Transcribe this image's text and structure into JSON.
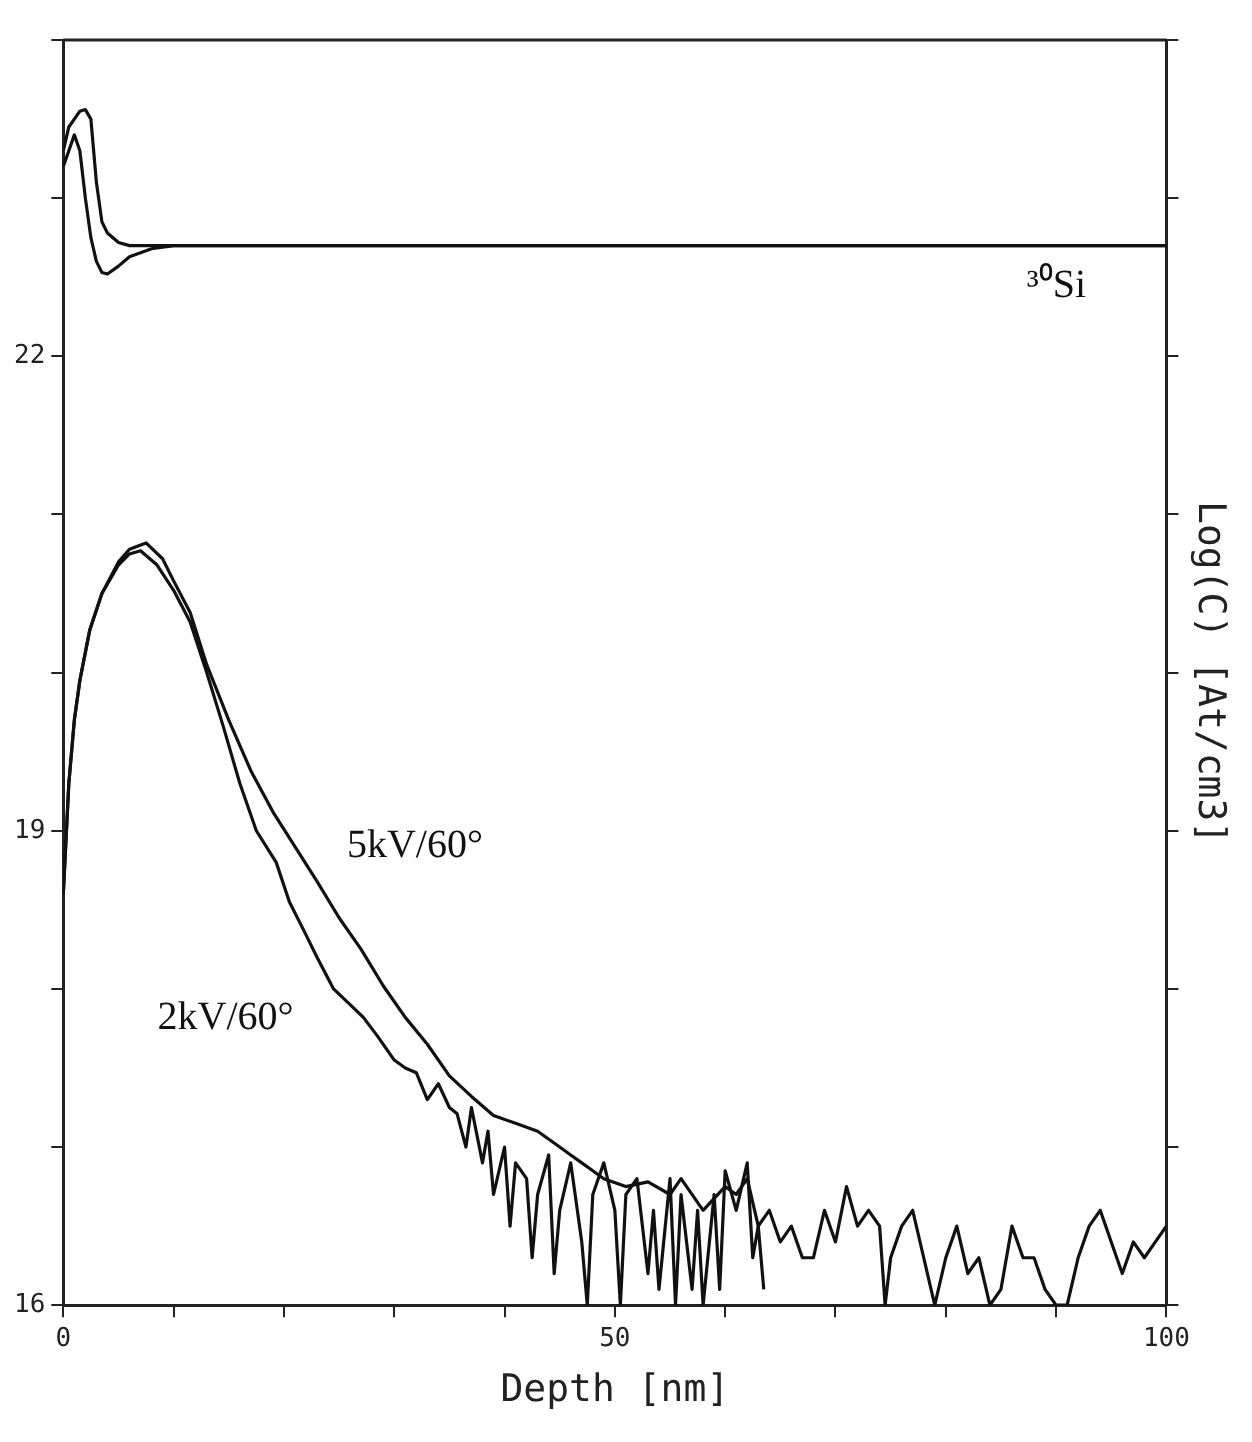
{
  "chart_data": {
    "type": "line",
    "xlabel": "Depth [nm]",
    "ylabel": "Log(C) [At/cm3]",
    "xlim": [
      0,
      100
    ],
    "xticks": [
      0,
      {
        "value": 10,
        "label": null
      },
      {
        "value": 20,
        "label": null
      },
      {
        "value": 30,
        "label": null
      },
      {
        "value": 40,
        "label": null
      },
      50,
      {
        "value": 60,
        "label": null
      },
      {
        "value": 70,
        "label": null
      },
      {
        "value": 80,
        "label": null
      },
      {
        "value": 90,
        "label": null
      },
      100
    ],
    "ylim": [
      16,
      24
    ],
    "yticks": [
      16,
      {
        "value": 17,
        "label": null
      },
      {
        "value": 18,
        "label": null
      },
      19,
      {
        "value": 20,
        "label": null
      },
      {
        "value": 21,
        "label": null
      },
      22,
      {
        "value": 23,
        "label": null
      },
      {
        "value": 24,
        "label": null
      }
    ],
    "marker": "none",
    "line_style": "solid",
    "annotations": [
      "³⁰Si"
    ],
    "series": [
      {
        "name": "5kV/60°",
        "color": "#111111",
        "x": [
          0,
          0.5,
          1,
          1.5,
          2.4,
          3.5,
          5,
          6,
          7.5,
          9,
          10,
          11.5,
          13,
          15,
          17,
          19,
          21,
          23,
          25,
          27,
          29,
          31,
          33,
          35,
          37,
          39,
          41,
          43,
          45,
          46,
          47,
          48,
          49,
          51,
          53,
          55,
          56,
          58,
          60,
          61,
          62,
          63,
          64,
          65,
          66,
          67,
          68,
          69,
          70,
          71,
          72,
          73,
          74,
          74.5,
          75,
          76,
          77,
          78,
          79,
          80,
          81,
          82,
          83,
          84,
          85,
          86,
          87,
          88,
          89,
          90,
          91,
          92,
          93,
          94,
          95,
          96,
          97,
          98,
          99,
          100
        ],
        "values": [
          18.6,
          19.3,
          19.7,
          19.95,
          20.27,
          20.5,
          20.7,
          20.78,
          20.82,
          20.72,
          20.58,
          20.38,
          20.05,
          19.7,
          19.38,
          19.12,
          18.9,
          18.68,
          18.45,
          18.25,
          18.02,
          17.82,
          17.65,
          17.45,
          17.32,
          17.2,
          17.15,
          17.1,
          17.0,
          16.95,
          16.9,
          16.85,
          16.8,
          16.75,
          16.78,
          16.7,
          16.8,
          16.6,
          16.75,
          16.7,
          16.8,
          16.5,
          16.6,
          16.4,
          16.5,
          16.3,
          16.3,
          16.6,
          16.4,
          16.75,
          16.5,
          16.6,
          16.5,
          16.0,
          16.3,
          16.5,
          16.6,
          16.3,
          16.0,
          16.3,
          16.5,
          16.2,
          16.3,
          16.0,
          16.1,
          16.5,
          16.3,
          16.3,
          16.1,
          16.0,
          16.0,
          16.3,
          16.5,
          16.6,
          16.4,
          16.2,
          16.4,
          16.3,
          16.4,
          16.5
        ]
      },
      {
        "name": "2kV/60°",
        "color": "#111111",
        "x": [
          0,
          0.5,
          1,
          1.5,
          2.4,
          3.5,
          5,
          6,
          7,
          8.5,
          10,
          11.5,
          13,
          14.5,
          16,
          17.5,
          19.3,
          20.5,
          21.8,
          23,
          24.5,
          26,
          27.2,
          28.5,
          30,
          31,
          32,
          33,
          34,
          35,
          35.7,
          36.5,
          37,
          38,
          38.5,
          39,
          40,
          40.5,
          41,
          42,
          42.5,
          43,
          44,
          44.5,
          45,
          46,
          47,
          47.5,
          48,
          49,
          50,
          50.5,
          51,
          52,
          53,
          53.5,
          54,
          55,
          55.5,
          56,
          57,
          57.5,
          58,
          59,
          59.5,
          60,
          61,
          62,
          62.5,
          63,
          63.5
        ],
        "values": [
          18.6,
          19.3,
          19.7,
          19.95,
          20.27,
          20.5,
          20.68,
          20.75,
          20.77,
          20.68,
          20.52,
          20.32,
          20.0,
          19.66,
          19.3,
          19.0,
          18.8,
          18.55,
          18.37,
          18.2,
          18.0,
          17.9,
          17.82,
          17.7,
          17.55,
          17.5,
          17.47,
          17.3,
          17.4,
          17.25,
          17.21,
          17.0,
          17.25,
          16.9,
          17.1,
          16.7,
          17.0,
          16.5,
          16.9,
          16.8,
          16.3,
          16.7,
          16.95,
          16.2,
          16.6,
          16.9,
          16.4,
          16.0,
          16.7,
          16.9,
          16.6,
          16.0,
          16.7,
          16.8,
          16.2,
          16.6,
          16.1,
          16.8,
          16.0,
          16.7,
          16.1,
          16.6,
          16.0,
          16.7,
          16.1,
          16.85,
          16.6,
          16.9,
          16.3,
          16.5,
          16.1
        ]
      },
      {
        "color": "#111111",
        "x": [
          0,
          0.5,
          1,
          1.5,
          2,
          2.5,
          3,
          3.5,
          4,
          5,
          6,
          8,
          100
        ],
        "values": [
          23.3,
          23.45,
          23.5,
          23.55,
          23.56,
          23.5,
          23.1,
          22.85,
          22.78,
          22.72,
          22.7,
          22.7,
          22.7
        ]
      },
      {
        "color": "#111111",
        "x": [
          0,
          0.5,
          1,
          1.5,
          2,
          2.5,
          3,
          3.5,
          4,
          5,
          6,
          8,
          10,
          100
        ],
        "values": [
          23.2,
          23.3,
          23.4,
          23.3,
          23.0,
          22.75,
          22.6,
          22.53,
          22.52,
          22.57,
          22.63,
          22.68,
          22.7,
          22.7
        ]
      }
    ]
  }
}
